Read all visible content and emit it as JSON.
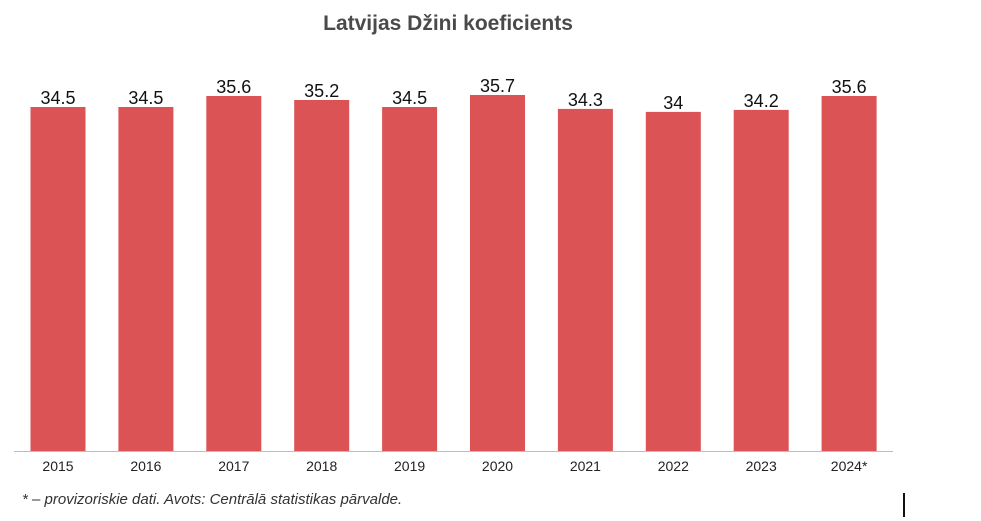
{
  "chart_data": {
    "type": "bar",
    "title": "Latvijas Džini koeficients",
    "xlabel": "",
    "ylabel": "",
    "categories": [
      "2015",
      "2016",
      "2017",
      "2018",
      "2019",
      "2020",
      "2021",
      "2022",
      "2023",
      "2024*"
    ],
    "values": [
      34.5,
      34.5,
      35.6,
      35.2,
      34.5,
      35.7,
      34.3,
      34,
      34.2,
      35.6
    ],
    "value_labels": [
      "34.5",
      "34.5",
      "35.6",
      "35.2",
      "34.5",
      "35.7",
      "34.3",
      "34",
      "34.2",
      "35.6"
    ],
    "ylim": [
      0,
      36.3
    ],
    "grid": false,
    "bar_color": "#db5355"
  },
  "footnote": "* – provizoriskie dati. Avots: Centrālā statistikas pārvalde."
}
